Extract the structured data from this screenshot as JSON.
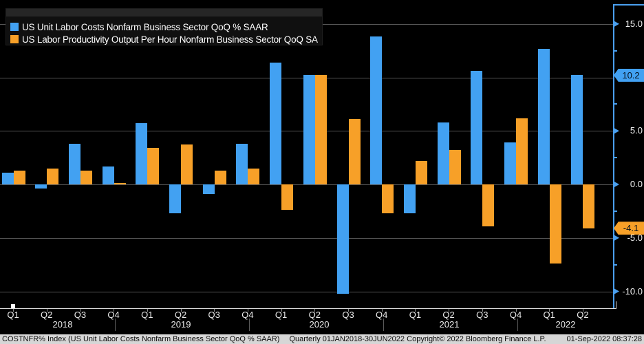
{
  "legend": {
    "items": [
      {
        "label": "US Unit Labor Costs Nonfarm Business Sector QoQ % SAAR",
        "color": "#42a1f2"
      },
      {
        "label": "US Labor Productivity Output Per Hour Nonfarm Business Sector QoQ SA",
        "color": "#f7a028"
      }
    ]
  },
  "chart_data": {
    "type": "bar",
    "title": "",
    "categories": [
      "2018 Q1",
      "2018 Q2",
      "2018 Q3",
      "2018 Q4",
      "2019 Q1",
      "2019 Q2",
      "2019 Q3",
      "2019 Q4",
      "2020 Q1",
      "2020 Q2",
      "2020 Q3",
      "2020 Q4",
      "2021 Q1",
      "2021 Q2",
      "2021 Q3",
      "2021 Q4",
      "2022 Q1",
      "2022 Q2"
    ],
    "x_groups": [
      {
        "year": "2018",
        "quarters": [
          "Q1",
          "Q2",
          "Q3",
          "Q4"
        ]
      },
      {
        "year": "2019",
        "quarters": [
          "Q1",
          "Q2",
          "Q3",
          "Q4"
        ]
      },
      {
        "year": "2020",
        "quarters": [
          "Q1",
          "Q2",
          "Q3",
          "Q4"
        ]
      },
      {
        "year": "2021",
        "quarters": [
          "Q1",
          "Q2",
          "Q3",
          "Q4"
        ]
      },
      {
        "year": "2022",
        "quarters": [
          "Q1",
          "Q2"
        ]
      }
    ],
    "series": [
      {
        "name": "US Unit Labor Costs Nonfarm Business Sector QoQ % SAAR",
        "color": "#42a1f2",
        "values": [
          1.1,
          -0.4,
          3.8,
          1.7,
          5.7,
          -2.7,
          -0.9,
          3.8,
          11.4,
          10.2,
          -10.2,
          13.8,
          -2.7,
          5.8,
          10.6,
          3.9,
          12.7,
          10.2
        ]
      },
      {
        "name": "US Labor Productivity Output Per Hour Nonfarm Business Sector QoQ SA",
        "color": "#f7a028",
        "values": [
          1.3,
          1.5,
          1.3,
          0.1,
          3.4,
          3.7,
          1.3,
          1.5,
          -2.4,
          10.2,
          6.1,
          -2.7,
          2.2,
          3.2,
          -3.9,
          6.2,
          -7.4,
          -4.1
        ]
      }
    ],
    "ylim": [
      -11.6,
      16.8
    ],
    "grid": "horizontal",
    "legend_position": "top-left",
    "gridline_values": [
      15,
      10,
      5,
      0,
      -5,
      -10
    ],
    "yticks": [
      {
        "value": 15,
        "label": "15.0"
      },
      {
        "value": 5,
        "label": "5.0"
      },
      {
        "value": 0,
        "label": "0.0"
      },
      {
        "value": -5,
        "label": "-5.0"
      },
      {
        "value": -10,
        "label": "-10.0"
      }
    ],
    "minor_yticks": [
      12.5,
      7.5,
      2.5,
      -2.5,
      -7.5
    ],
    "last_value_badges": [
      {
        "label": "10.2",
        "value": 10.2,
        "color": "#42a1f2",
        "series": "US Unit Labor Costs Nonfarm Business Sector QoQ % SAAR"
      },
      {
        "label": "-4.1",
        "value": -4.1,
        "color": "#f7a028",
        "series": "US Labor Productivity Output Per Hour Nonfarm Business Sector QoQ SA"
      }
    ]
  },
  "footer": {
    "security_text": "COSTNFR% Index (US Unit Labor Costs Nonfarm Business Sector QoQ % SAAR)",
    "periodicity_text": "Quarterly 01JAN2018-30JUN2022",
    "copyright_text": "Copyright© 2022 Bloomberg Finance L.P.",
    "timestamp": "01-Sep-2022 08:37:28"
  }
}
